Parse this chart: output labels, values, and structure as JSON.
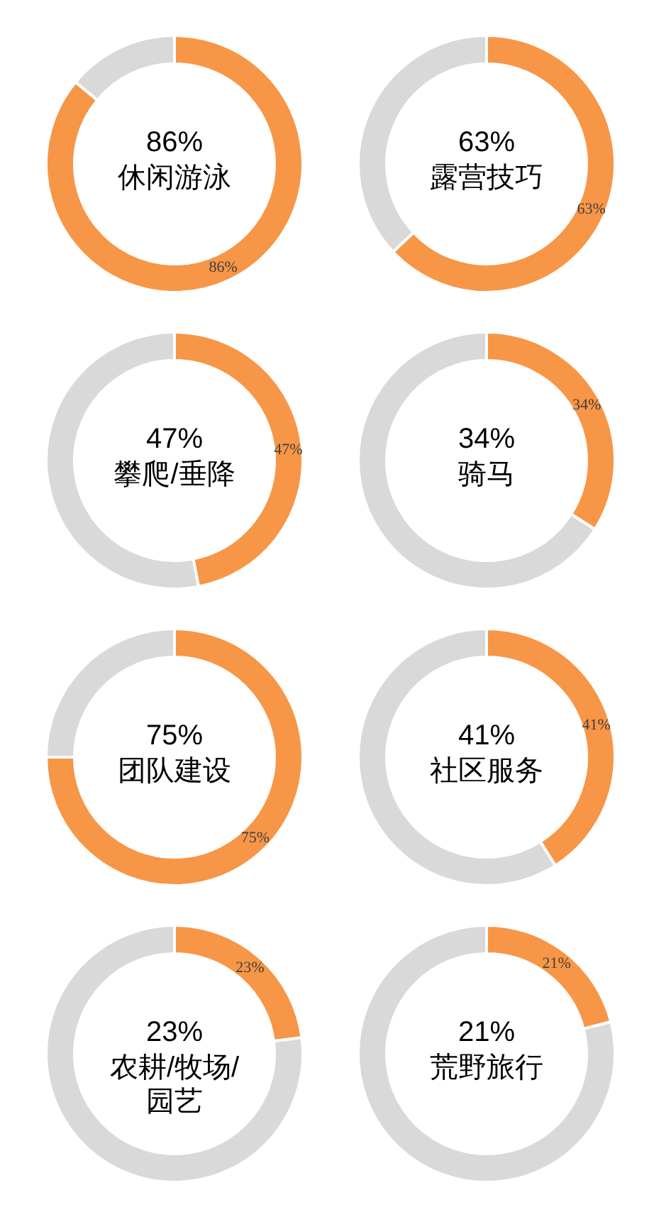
{
  "chart_data": [
    {
      "type": "donut",
      "title": "休闲游泳",
      "categories": [
        null,
        null
      ],
      "values": [
        86,
        14
      ],
      "colors": [
        "#f79646",
        "#d9d9d9"
      ],
      "annotations": [
        "86%"
      ],
      "value_labels": [
        "86%",
        null
      ]
    },
    {
      "type": "donut",
      "title": "露营技巧",
      "categories": [
        null,
        null
      ],
      "values": [
        63,
        37
      ],
      "colors": [
        "#f79646",
        "#d9d9d9"
      ],
      "annotations": [
        "63%"
      ],
      "value_labels": [
        "63%",
        null
      ]
    },
    {
      "type": "donut",
      "title": "攀爬/垂降",
      "categories": [
        null,
        null
      ],
      "values": [
        47,
        53
      ],
      "colors": [
        "#f79646",
        "#d9d9d9"
      ],
      "annotations": [
        "47%"
      ],
      "value_labels": [
        "47%",
        null
      ]
    },
    {
      "type": "donut",
      "title": "骑马",
      "categories": [
        null,
        null
      ],
      "values": [
        34,
        66
      ],
      "colors": [
        "#f79646",
        "#d9d9d9"
      ],
      "annotations": [
        "34%"
      ],
      "value_labels": [
        "34%",
        null
      ]
    },
    {
      "type": "donut",
      "title": "团队建设",
      "categories": [
        null,
        null
      ],
      "values": [
        75,
        25
      ],
      "colors": [
        "#f79646",
        "#d9d9d9"
      ],
      "annotations": [
        "75%"
      ],
      "value_labels": [
        "75%",
        null
      ]
    },
    {
      "type": "donut",
      "title": "社区服务",
      "categories": [
        null,
        null
      ],
      "values": [
        41,
        59
      ],
      "colors": [
        "#f79646",
        "#d9d9d9"
      ],
      "annotations": [
        "41%"
      ],
      "value_labels": [
        "41%",
        null
      ]
    },
    {
      "type": "donut",
      "title": "农耕/牧场/园艺",
      "categories": [
        null,
        null
      ],
      "values": [
        23,
        77
      ],
      "colors": [
        "#f79646",
        "#d9d9d9"
      ],
      "annotations": [
        "23%"
      ],
      "value_labels": [
        "23%",
        null
      ]
    },
    {
      "type": "donut",
      "title": "荒野旅行",
      "categories": [
        null,
        null
      ],
      "values": [
        21,
        79
      ],
      "colors": [
        "#f79646",
        "#d9d9d9"
      ],
      "annotations": [
        "21%"
      ],
      "value_labels": [
        "21%",
        null
      ]
    }
  ]
}
